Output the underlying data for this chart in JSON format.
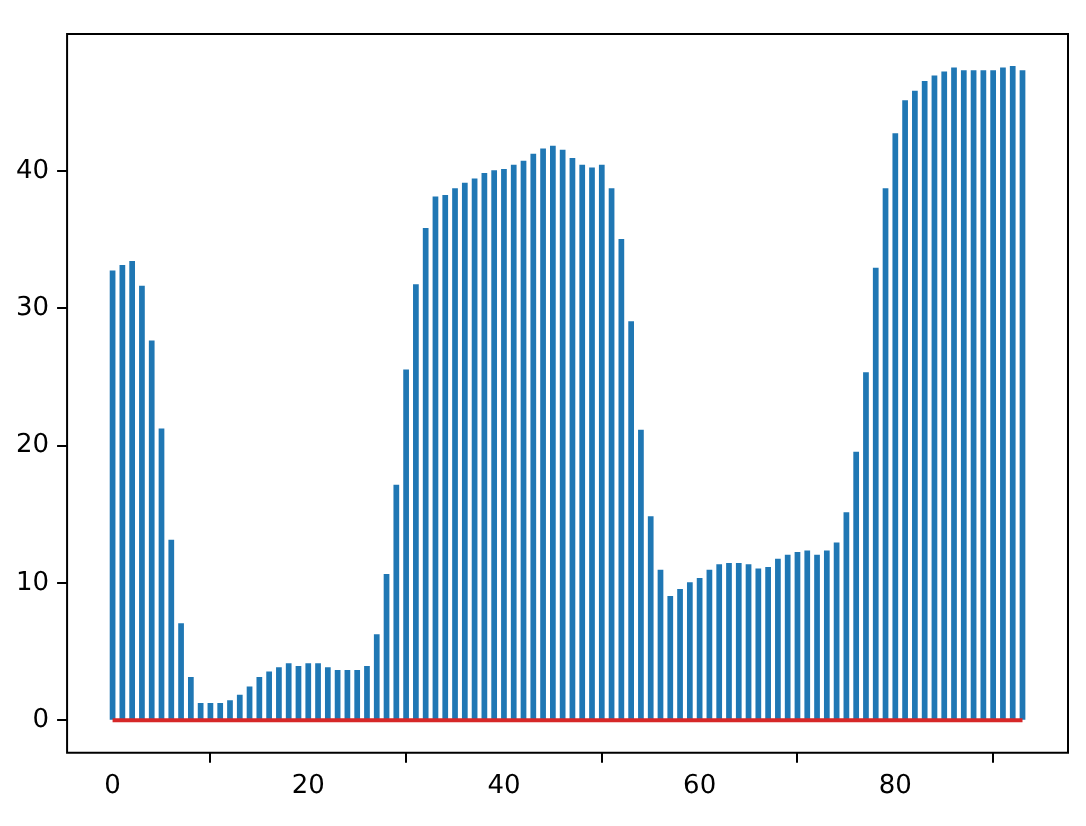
{
  "chart_data": {
    "type": "bar",
    "color": "#1f77b4",
    "x": [
      0,
      1,
      2,
      3,
      4,
      5,
      6,
      7,
      8,
      9,
      10,
      11,
      12,
      13,
      14,
      15,
      16,
      17,
      18,
      19,
      20,
      21,
      22,
      23,
      24,
      25,
      26,
      27,
      28,
      29,
      30,
      31,
      32,
      33,
      34,
      35,
      36,
      37,
      38,
      39,
      40,
      41,
      42,
      43,
      44,
      45,
      46,
      47,
      48,
      49,
      50,
      51,
      52,
      53,
      54,
      55,
      56,
      57,
      58,
      59,
      60,
      61,
      62,
      63,
      64,
      65,
      66,
      67,
      68,
      69,
      70,
      71,
      72,
      73,
      74,
      75,
      76,
      77,
      78,
      79,
      80,
      81,
      82,
      83,
      84,
      85,
      86,
      87,
      88,
      89,
      90,
      91,
      92,
      93
    ],
    "values": [
      32.7,
      33.1,
      33.4,
      31.6,
      27.6,
      21.2,
      13.1,
      7.0,
      3.1,
      1.2,
      1.2,
      1.2,
      1.4,
      1.8,
      2.4,
      3.1,
      3.5,
      3.8,
      4.1,
      3.9,
      4.1,
      4.1,
      3.8,
      3.6,
      3.6,
      3.6,
      3.9,
      6.2,
      10.6,
      17.1,
      25.5,
      31.7,
      35.8,
      38.1,
      38.2,
      38.7,
      39.1,
      39.4,
      39.8,
      40.0,
      40.1,
      40.4,
      40.7,
      41.2,
      41.6,
      41.8,
      41.5,
      40.9,
      40.4,
      40.2,
      40.4,
      38.7,
      35.0,
      29.0,
      21.1,
      14.8,
      10.9,
      9.0,
      9.5,
      10.0,
      10.3,
      10.9,
      11.3,
      11.4,
      11.4,
      11.3,
      11.0,
      11.1,
      11.7,
      12.0,
      12.2,
      12.3,
      12.0,
      12.3,
      12.9,
      15.1,
      19.5,
      25.3,
      32.9,
      38.7,
      42.7,
      45.1,
      45.8,
      46.5,
      46.9,
      47.2,
      47.5,
      47.3,
      47.3,
      47.3,
      47.3,
      47.5,
      47.6,
      47.3
    ],
    "xlim": [
      -4.65,
      97.65
    ],
    "xticks": [
      0,
      20,
      40,
      60,
      80
    ],
    "ylim": [
      -2.38,
      49.98
    ],
    "yticks": [
      0,
      10,
      20,
      30,
      40
    ],
    "ref_lines": [
      {
        "axis": "y",
        "value": 0,
        "color": "#d62728",
        "line_style": "solid"
      }
    ]
  }
}
